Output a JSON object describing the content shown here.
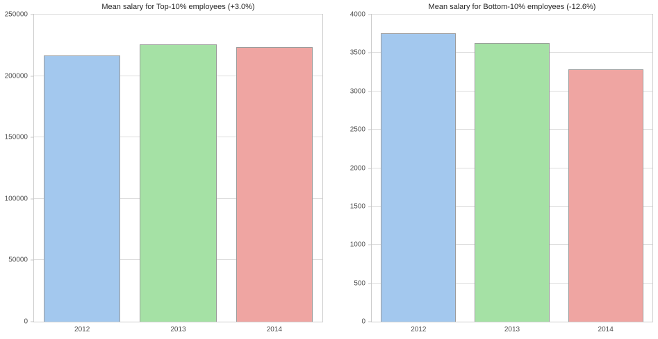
{
  "figure": {
    "background": "#ffffff",
    "grid_color": "#dcdcdc",
    "spine_color": "#cccccc",
    "tick_label_color": "#4d4d4d",
    "title_color": "#262626",
    "bar_edge_color": "#9b9b9b"
  },
  "chart_data": [
    {
      "type": "bar",
      "title": "Mean salary for Top-10% employees (+3.0%)",
      "categories": [
        "2012",
        "2013",
        "2014"
      ],
      "values": [
        216800,
        225800,
        223300
      ],
      "bar_colors": [
        "#a3c8ee",
        "#a5e1a5",
        "#efa5a2"
      ],
      "ylim": [
        0,
        250000
      ],
      "yticks": [
        0,
        50000,
        100000,
        150000,
        200000,
        250000
      ],
      "xlabel": "",
      "ylabel": "",
      "grid": true,
      "legend": false
    },
    {
      "type": "bar",
      "title": "Mean salary for Bottom-10% employees (-12.6%)",
      "categories": [
        "2012",
        "2013",
        "2014"
      ],
      "values": [
        3757,
        3630,
        3285
      ],
      "bar_colors": [
        "#a3c8ee",
        "#a5e1a5",
        "#efa5a2"
      ],
      "ylim": [
        0,
        4000
      ],
      "yticks": [
        0,
        500,
        1000,
        1500,
        2000,
        2500,
        3000,
        3500,
        4000
      ],
      "xlabel": "",
      "ylabel": "",
      "grid": true,
      "legend": false
    }
  ]
}
